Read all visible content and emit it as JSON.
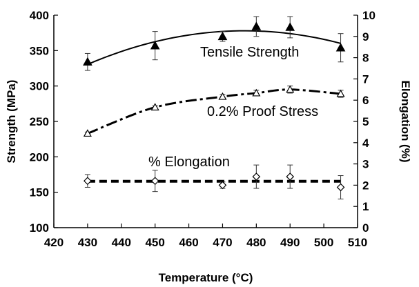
{
  "chart_data": {
    "type": "line",
    "title": "",
    "xlabel": "Temperature (°C)",
    "ylabel_left": "Strength (MPa)",
    "ylabel_right": "Elongation (%)",
    "xlim": [
      420,
      510
    ],
    "ylim_left": [
      100,
      400
    ],
    "ylim_right": [
      0,
      10
    ],
    "x_ticks": [
      420,
      430,
      440,
      450,
      460,
      470,
      480,
      490,
      500,
      510
    ],
    "y_left_ticks": [
      100,
      150,
      200,
      250,
      300,
      350,
      400
    ],
    "y_right_ticks": [
      0,
      1,
      2,
      3,
      4,
      5,
      6,
      7,
      8,
      9,
      10
    ],
    "grid": false,
    "legend": "none",
    "series": [
      {
        "name": "Tensile Strength",
        "axis": "left",
        "marker": "filled-triangle",
        "line": "solid",
        "x": [
          430,
          450,
          470,
          480,
          490,
          505
        ],
        "y": [
          334,
          357,
          370,
          384,
          383,
          354
        ],
        "error": [
          12,
          20,
          7,
          14,
          15,
          20
        ]
      },
      {
        "name": "0.2% Proof Stress",
        "axis": "left",
        "marker": "open-triangle",
        "line": "dashed",
        "x": [
          430,
          450,
          470,
          480,
          490,
          505
        ],
        "y": [
          233,
          270,
          285,
          290,
          295,
          289
        ],
        "error": [
          2,
          2,
          3,
          4,
          5,
          5
        ]
      },
      {
        "name": "% Elongation",
        "axis": "right",
        "marker": "open-diamond",
        "line": "dashed",
        "x": [
          430,
          450,
          470,
          480,
          490,
          505
        ],
        "y": [
          2.2,
          2.2,
          2.0,
          2.4,
          2.4,
          1.9
        ],
        "error": [
          0.3,
          0.5,
          0.15,
          0.55,
          0.55,
          0.55
        ]
      }
    ],
    "annotations": [
      "Tensile Strength",
      "0.2% Proof Stress",
      "% Elongation"
    ]
  }
}
